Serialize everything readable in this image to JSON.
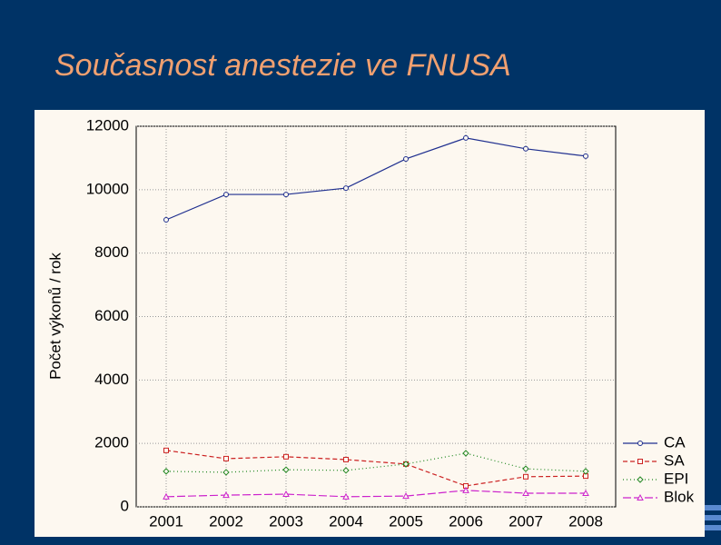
{
  "chart_data": {
    "type": "line",
    "title": "Současnost anestezie ve FNUSA",
    "y_label": "Počet výkonů / rok",
    "categories": [
      "2001",
      "2002",
      "2003",
      "2004",
      "2005",
      "2006",
      "2007",
      "2008"
    ],
    "series": [
      {
        "name": "CA",
        "color": "#1f2f8f",
        "dash": "none",
        "marker": "circle",
        "values": [
          9050,
          9850,
          9850,
          10050,
          10970,
          11630,
          11290,
          11060
        ]
      },
      {
        "name": "SA",
        "color": "#cc2222",
        "dash": "5 3",
        "marker": "square",
        "values": [
          1780,
          1520,
          1580,
          1490,
          1350,
          660,
          950,
          970
        ]
      },
      {
        "name": "EPI",
        "color": "#228822",
        "dash": "1 3",
        "marker": "diamond",
        "values": [
          1120,
          1090,
          1170,
          1150,
          1350,
          1690,
          1200,
          1120
        ]
      },
      {
        "name": "Blok",
        "color": "#cc22cc",
        "dash": "9 3",
        "marker": "triangle",
        "values": [
          320,
          370,
          400,
          320,
          340,
          520,
          430,
          430
        ]
      }
    ],
    "ylim": [
      0,
      12000
    ],
    "yticks": [
      0,
      2000,
      4000,
      6000,
      8000,
      10000,
      12000
    ],
    "grid": true,
    "legend": "bottom-right"
  }
}
